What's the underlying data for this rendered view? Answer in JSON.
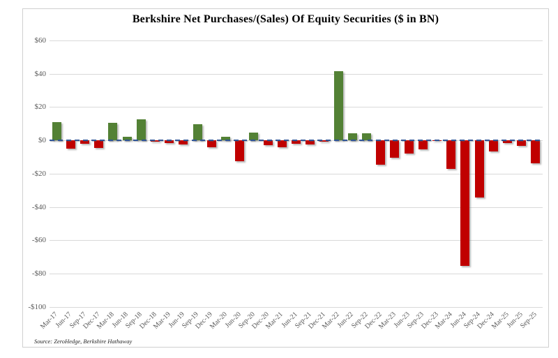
{
  "title": "Berkshire Net Purchases/(Sales) Of Equity Securities ($ in BN)",
  "source": "Source: ZeroHedge, Berkshire Hathaway",
  "colors": {
    "positive_bar": "#538135",
    "negative_bar": "#C00000",
    "zero_line": "#2F5597",
    "gridline": "#D9D9D9",
    "tick_text": "#595959",
    "frame_border": "#CFCFCF",
    "background": "#FFFFFF"
  },
  "chart_data": {
    "type": "bar",
    "title": "Berkshire Net Purchases/(Sales) Of Equity Securities ($ in BN)",
    "xlabel": "",
    "ylabel": "",
    "ylim": [
      -100,
      60
    ],
    "grid": true,
    "zero_line_style": "dashed-blue",
    "ytick_values": [
      60,
      40,
      20,
      0,
      -20,
      -40,
      -60,
      -80,
      -100
    ],
    "ytick_labels": [
      "$60",
      "$40",
      "$20",
      "$0",
      "-$20",
      "-$40",
      "-$60",
      "-$80",
      "-$100"
    ],
    "categories": [
      "Mar-17",
      "Jun-17",
      "Sep-17",
      "Dec-17",
      "Mar-18",
      "Jun-18",
      "Sep-18",
      "Dec-18",
      "Mar-19",
      "Jun-19",
      "Sep-19",
      "Dec-19",
      "Mar-20",
      "Jun-20",
      "Sep-20",
      "Dec-20",
      "Mar-21",
      "Jun-21",
      "Sep-21",
      "Dec-21",
      "Mar-22",
      "Jun-22",
      "Sep-22",
      "Dec-22",
      "Mar-23",
      "Jun-23",
      "Sep-23",
      "Dec-23",
      "Mar-24",
      "Jun-24",
      "Sep-24",
      "Dec-24",
      "Mar-25",
      "Jun-25",
      "Sep-25"
    ],
    "values": [
      11,
      -5,
      -2,
      -4.5,
      10.5,
      2,
      12.5,
      -1,
      -1.5,
      -2.5,
      9.5,
      -4,
      2,
      -12.5,
      4.8,
      -3,
      -4,
      -2,
      -2.5,
      -1,
      41.5,
      4,
      4,
      -14.6,
      -10.5,
      -8,
      -5.3,
      -0.5,
      -17.3,
      -75.5,
      -34.5,
      -6.8,
      -1.5,
      -3.5,
      -13.7
    ]
  }
}
